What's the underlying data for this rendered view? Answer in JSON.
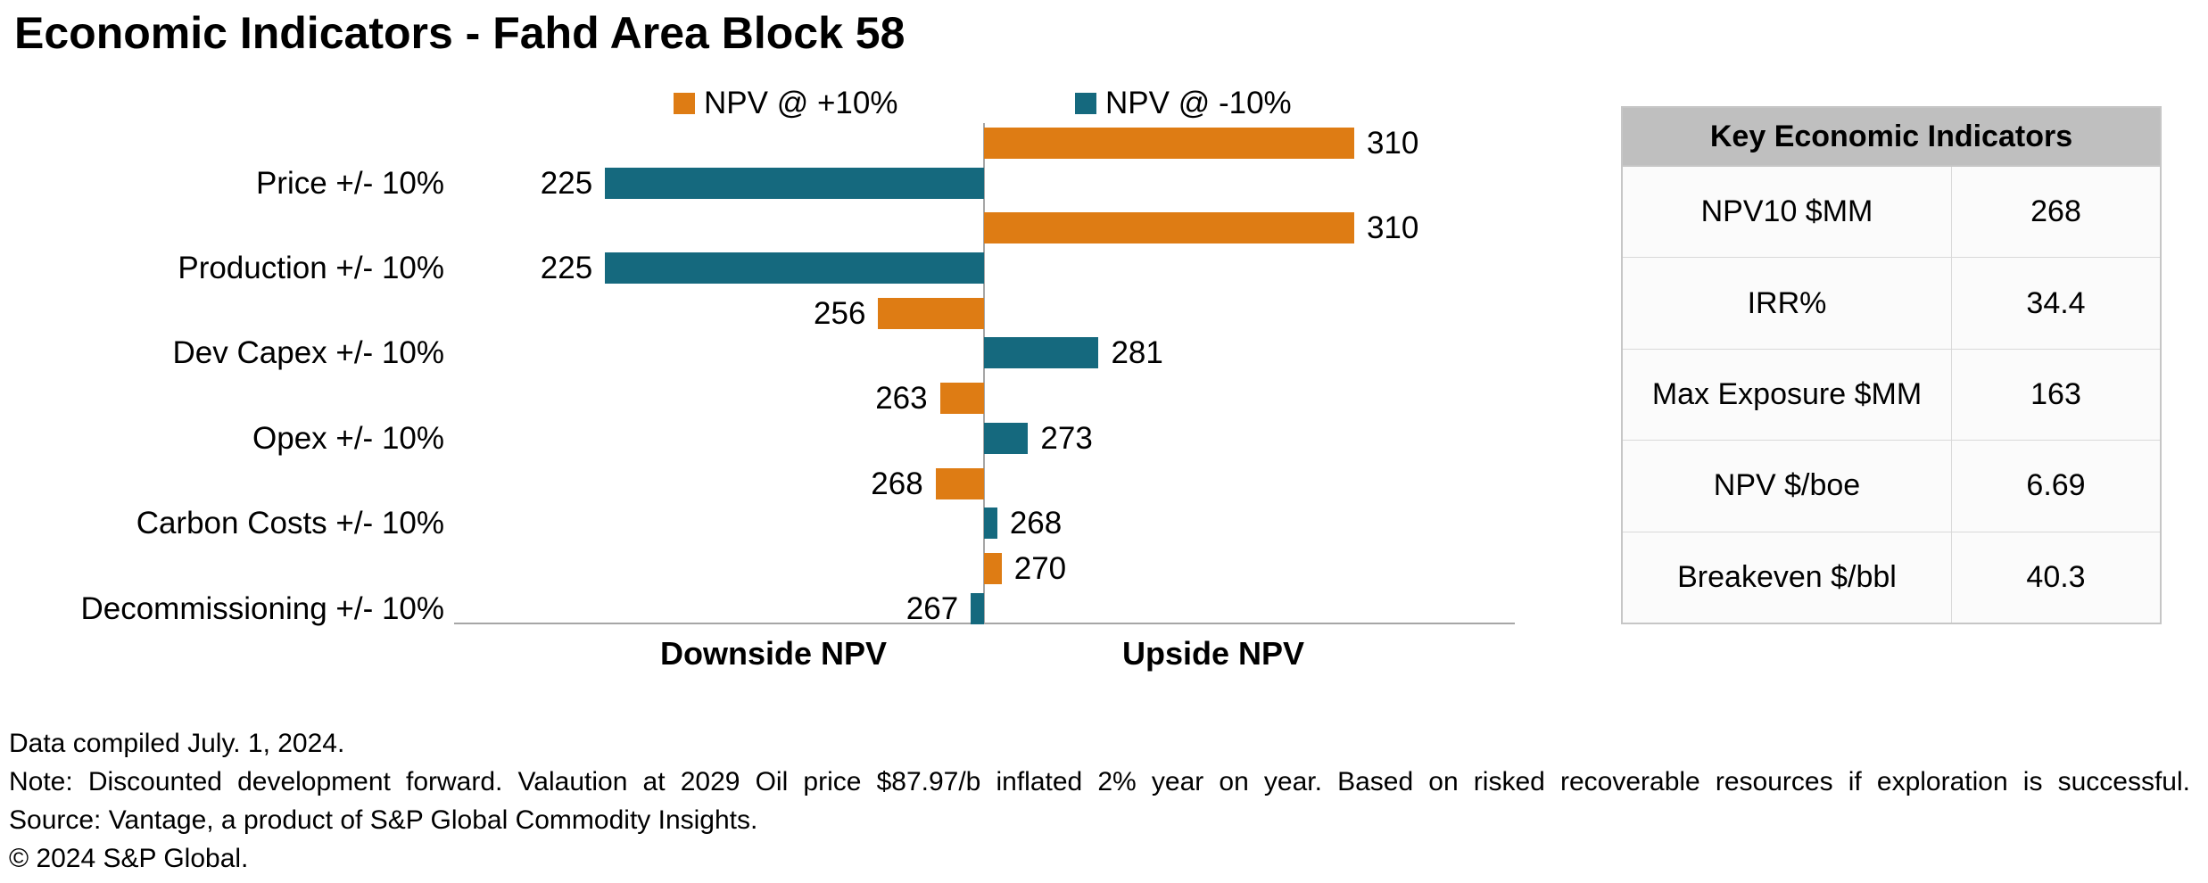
{
  "chart_data": {
    "type": "bar",
    "variant": "tornado",
    "title": "Economic Indicators - Fahd Area Block 58",
    "baseline": 268,
    "categories": [
      "Price +/- 10%",
      "Production +/- 10%",
      "Dev Capex +/- 10%",
      "Opex +/- 10%",
      "Carbon Costs +/- 10%",
      "Decommissioning +/- 10%"
    ],
    "series": [
      {
        "name": "NPV @ +10%",
        "color": "#DE7C14",
        "values": [
          310,
          310,
          256,
          263,
          268,
          270
        ],
        "bar_draw": [
          310,
          310,
          256,
          263,
          262.5,
          270
        ]
      },
      {
        "name": "NPV @ -10%",
        "color": "#15697E",
        "values": [
          225,
          225,
          281,
          273,
          268,
          267
        ],
        "bar_draw": [
          225,
          225,
          281,
          273,
          269.5,
          266.5
        ]
      }
    ],
    "x_axis_left_label": "Downside NPV",
    "x_axis_right_label": "Upside NPV",
    "value_range": [
      208,
      328
    ],
    "grid": false,
    "legend_position": "top"
  },
  "table": {
    "header": "Key Economic Indicators",
    "rows": [
      {
        "label": "NPV10 $MM",
        "value": "268"
      },
      {
        "label": "IRR%",
        "value": "34.4"
      },
      {
        "label": "Max Exposure $MM",
        "value": "163"
      },
      {
        "label": "NPV $/boe",
        "value": "6.69"
      },
      {
        "label": "Breakeven $/bbl",
        "value": "40.3"
      }
    ]
  },
  "footer": {
    "line1": "Data compiled July. 1, 2024.",
    "line2": "Note: Discounted development forward. Valaution at 2029 Oil price $87.97/b inflated 2% year on year. Based on risked recoverable resources if exploration is successful.",
    "line3": "Source: Vantage, a product of S&P Global Commodity Insights.",
    "line4": "© 2024 S&P Global."
  }
}
